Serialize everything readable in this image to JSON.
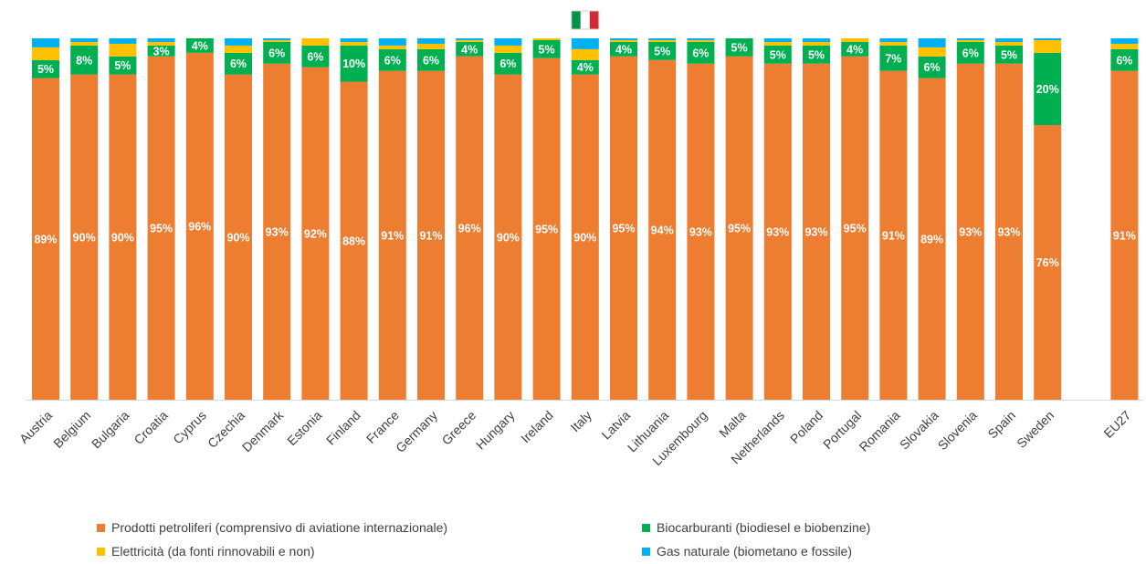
{
  "chart_data": {
    "type": "bar",
    "stacked": true,
    "percent_stacked": true,
    "ylim": [
      0,
      100
    ],
    "grid": false,
    "legend_position": "bottom",
    "categories": [
      "Austria",
      "Belgium",
      "Bulgaria",
      "Croatia",
      "Cyprus",
      "Czechia",
      "Denmark",
      "Estonia",
      "Finland",
      "France",
      "Germany",
      "Greece",
      "Hungary",
      "Ireland",
      "Italy",
      "Latvia",
      "Lithuania",
      "Luxembourg",
      "Malta",
      "Netherlands",
      "Poland",
      "Portugal",
      "Romania",
      "Slovakia",
      "Slovenia",
      "Spain",
      "Sweden",
      "EU27"
    ],
    "highlight_category": "Italy",
    "highlight_icon": "italian-flag-icon",
    "series": [
      {
        "name": "Prodotti petroliferi (comprensivo di aviatione internazionale)",
        "color": "#ED7D31",
        "values": [
          89,
          90,
          90,
          95,
          96,
          90,
          93,
          92,
          88,
          91,
          91,
          96,
          90,
          95,
          90,
          95,
          94,
          93,
          95,
          93,
          93,
          95,
          91,
          89,
          93,
          93,
          76,
          91
        ],
        "labels": [
          "89%",
          "90%",
          "90%",
          "95%",
          "96%",
          "90%",
          "93%",
          "92%",
          "88%",
          "91%",
          "91%",
          "96%",
          "90%",
          "95%",
          "90%",
          "95%",
          "94%",
          "93%",
          "95%",
          "93%",
          "93%",
          "95%",
          "91%",
          "89%",
          "93%",
          "93%",
          "76%",
          "91%"
        ]
      },
      {
        "name": "Biocarburanti (biodiesel e biobenzine)",
        "color": "#00B050",
        "values": [
          5,
          8,
          5,
          3,
          4,
          6,
          6,
          6,
          10,
          6,
          6,
          4,
          6,
          5,
          4,
          4,
          5,
          6,
          5,
          5,
          5,
          4,
          7,
          6,
          6,
          5,
          20,
          6
        ],
        "labels": [
          "5%",
          "8%",
          "5%",
          "3%",
          "4%",
          "6%",
          "6%",
          "6%",
          "10%",
          "6%",
          "6%",
          "4%",
          "6%",
          "5%",
          "4%",
          "4%",
          "5%",
          "6%",
          "5%",
          "5%",
          "5%",
          "4%",
          "7%",
          "6%",
          "6%",
          "5%",
          "20%",
          "6%"
        ]
      },
      {
        "name": "Elettricità (da fonti rinnovabili e non)",
        "color": "#FFC000",
        "values": [
          3.5,
          1,
          3.5,
          1,
          0,
          2,
          0.5,
          2,
          1,
          1,
          1.5,
          0.5,
          2,
          0.5,
          3,
          0.5,
          0.5,
          0.5,
          0,
          1,
          1,
          1,
          1,
          2.5,
          0.5,
          1,
          3.5,
          1.5
        ],
        "labels": []
      },
      {
        "name": "Gas naturale (biometano e fossile)",
        "color": "#00B0F0",
        "values": [
          2.5,
          1,
          1.5,
          1,
          0,
          2,
          0.5,
          0,
          1,
          2,
          1.5,
          0.5,
          2,
          0,
          3,
          0.5,
          0.5,
          0.5,
          0,
          1,
          1,
          0,
          1,
          2.5,
          0.5,
          1,
          0.5,
          1.5
        ],
        "labels": []
      }
    ]
  }
}
